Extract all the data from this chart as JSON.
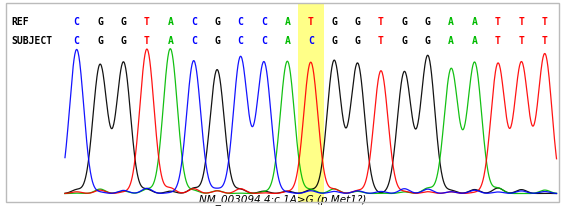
{
  "ref_label": "REF",
  "subject_label": "SUBJECT",
  "ref_sequence": [
    "C",
    "G",
    "G",
    "T",
    "A",
    "C",
    "G",
    "C",
    "C",
    "A",
    "T",
    "G",
    "G",
    "T",
    "G",
    "G",
    "A",
    "A",
    "T",
    "T",
    "T"
  ],
  "subject_sequence": [
    "C",
    "G",
    "G",
    "T",
    "A",
    "C",
    "G",
    "C",
    "C",
    "A",
    "C",
    "G",
    "G",
    "T",
    "G",
    "G",
    "A",
    "A",
    "T",
    "T",
    "T"
  ],
  "highlight_index": 10,
  "base_colors": {
    "A": "#00bb00",
    "C": "#0000ff",
    "G": "#000000",
    "T": "#ff0000"
  },
  "annotation": "NM_003094.4:c.1A>G (p.Met1?)",
  "highlight_color": "#ffff88",
  "bg_color": "#ffffff",
  "border_color": "#bbbbbb",
  "n_points": 1200,
  "fig_width": 5.65,
  "fig_height": 2.07,
  "dpi": 100
}
